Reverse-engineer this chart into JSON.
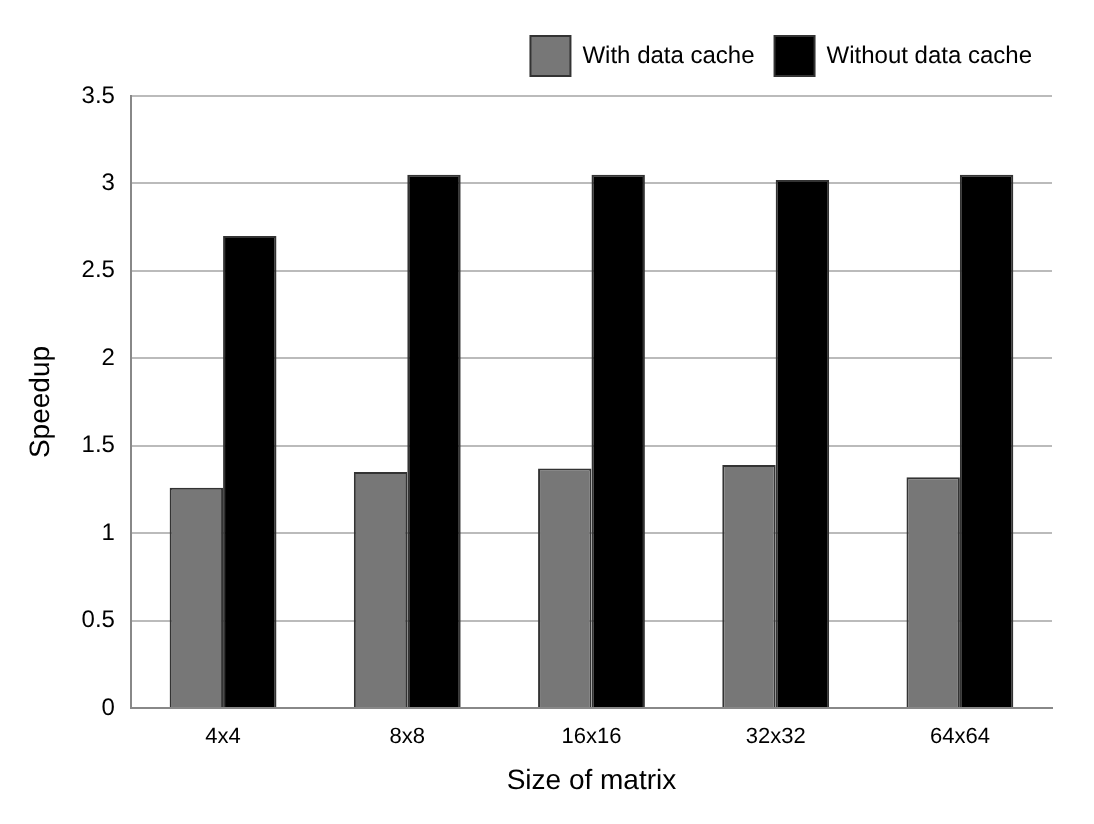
{
  "chart_data": {
    "type": "bar",
    "xlabel": "Size of matrix",
    "ylabel": "Speedup",
    "categories": [
      "4x4",
      "8x8",
      "16x16",
      "32x32",
      "64x64"
    ],
    "series": [
      {
        "name": "With data cache",
        "color": "#777777",
        "values": [
          1.26,
          1.35,
          1.37,
          1.39,
          1.32
        ]
      },
      {
        "name": "Without data cache",
        "color": "#000000",
        "values": [
          2.7,
          3.05,
          3.05,
          3.02,
          3.05
        ]
      }
    ],
    "ylim": [
      0,
      3.5
    ],
    "yticks": [
      0,
      0.5,
      1,
      1.5,
      2,
      2.5,
      3,
      3.5
    ],
    "grid": "y",
    "legend": "top"
  }
}
